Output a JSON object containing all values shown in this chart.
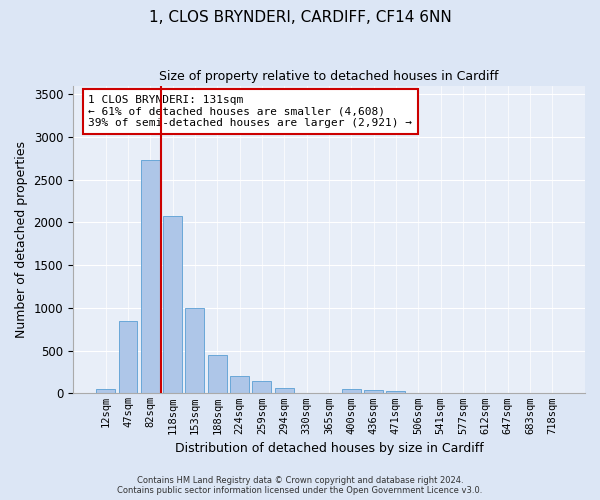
{
  "title": "1, CLOS BRYNDERI, CARDIFF, CF14 6NN",
  "subtitle": "Size of property relative to detached houses in Cardiff",
  "xlabel": "Distribution of detached houses by size in Cardiff",
  "ylabel": "Number of detached properties",
  "bar_labels": [
    "12sqm",
    "47sqm",
    "82sqm",
    "118sqm",
    "153sqm",
    "188sqm",
    "224sqm",
    "259sqm",
    "294sqm",
    "330sqm",
    "365sqm",
    "400sqm",
    "436sqm",
    "471sqm",
    "506sqm",
    "541sqm",
    "577sqm",
    "612sqm",
    "647sqm",
    "683sqm",
    "718sqm"
  ],
  "bar_values": [
    55,
    850,
    2730,
    2075,
    1000,
    450,
    200,
    140,
    65,
    10,
    5,
    50,
    45,
    25,
    5,
    2,
    2,
    2,
    0,
    0,
    0
  ],
  "bar_color": "#aec6e8",
  "bar_edgecolor": "#5a9fd4",
  "vline_x": 2.5,
  "vline_color": "#cc0000",
  "ylim": [
    0,
    3600
  ],
  "yticks": [
    0,
    500,
    1000,
    1500,
    2000,
    2500,
    3000,
    3500
  ],
  "annotation_text": "1 CLOS BRYNDERI: 131sqm\n← 61% of detached houses are smaller (4,608)\n39% of semi-detached houses are larger (2,921) →",
  "footer_line1": "Contains HM Land Registry data © Crown copyright and database right 2024.",
  "footer_line2": "Contains public sector information licensed under the Open Government Licence v3.0.",
  "bg_color": "#dce6f5",
  "plot_bg_color": "#e8eef8",
  "title_fontsize": 11,
  "subtitle_fontsize": 9,
  "axis_label_fontsize": 9,
  "tick_fontsize": 7.5
}
